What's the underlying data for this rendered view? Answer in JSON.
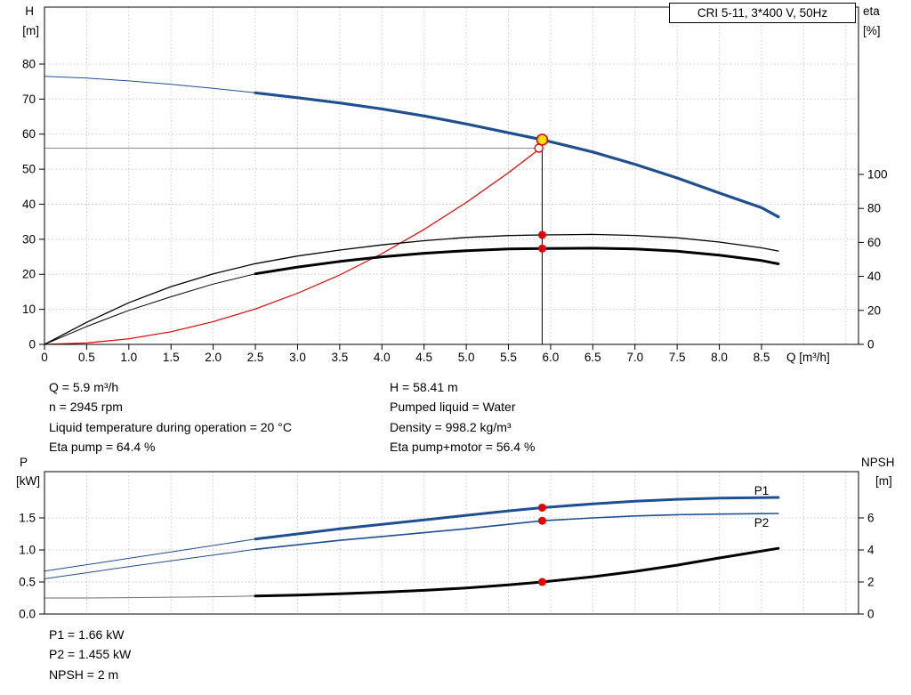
{
  "header": {
    "pump_title": "CRI 5-11, 3*400 V, 50Hz"
  },
  "top_info": {
    "left": [
      "Q = 5.9 m³/h",
      "n = 2945 rpm",
      "Liquid temperature during operation = 20 °C",
      "Eta pump = 64.4 %"
    ],
    "right": [
      "H = 58.41 m",
      "Pumped liquid = Water",
      "Density = 998.2 kg/m³",
      "Eta pump+motor = 56.4 %"
    ]
  },
  "bottom_info": [
    "P1 = 1.66 kW",
    "P2 = 1.455 kW",
    "NPSH = 2 m"
  ],
  "chart_data": [
    {
      "type": "line",
      "title": "CRI 5-11, 3*400 V, 50Hz",
      "x_axis": {
        "label": "Q [m³/h]",
        "range": [
          0,
          9.65
        ],
        "grid_step": 0.5,
        "ticks": [
          0,
          0.5,
          1,
          1.5,
          2,
          2.5,
          3,
          3.5,
          4,
          4.5,
          5,
          5.5,
          6,
          6.5,
          7,
          7.5,
          8,
          8.5
        ],
        "tick_labels": [
          "0",
          "0.5",
          "1.0",
          "1.5",
          "2.0",
          "2.5",
          "3.0",
          "3.5",
          "4.0",
          "4.5",
          "5.0",
          "5.5",
          "6.0",
          "6.5",
          "7.0",
          "7.5",
          "8.0",
          "8.5"
        ]
      },
      "axes": {
        "H": {
          "side": "left",
          "name": "H",
          "unit": "[m]",
          "range": [
            0,
            96.25
          ],
          "grid": true,
          "ticks": [
            0,
            10,
            20,
            30,
            40,
            50,
            60,
            70,
            80
          ]
        },
        "eta": {
          "side": "right",
          "name": "eta",
          "unit": "[%]",
          "range": [
            0,
            198.4
          ],
          "grid": false,
          "ticks": [
            0,
            20,
            40,
            60,
            80,
            100
          ]
        }
      },
      "series": [
        {
          "name": "crosshair-horizontal",
          "axis": "H",
          "color": "#8a8a8a",
          "width": 1,
          "points": [
            [
              0,
              56
            ],
            [
              5.9,
              56
            ]
          ]
        },
        {
          "name": "crosshair-vertical",
          "axis": "H",
          "color": "#000000",
          "width": 1,
          "points": [
            [
              5.9,
              0
            ],
            [
              5.9,
              58.41
            ]
          ]
        },
        {
          "name": "system-curve",
          "axis": "H",
          "color": "#e60000",
          "width": 1.2,
          "points": [
            [
              0,
              0
            ],
            [
              0.5,
              0.4
            ],
            [
              1,
              1.6
            ],
            [
              1.5,
              3.6
            ],
            [
              2,
              6.5
            ],
            [
              2.5,
              10.1
            ],
            [
              3,
              14.6
            ],
            [
              3.5,
              19.8
            ],
            [
              4,
              25.9
            ],
            [
              4.5,
              32.8
            ],
            [
              5,
              40.5
            ],
            [
              5.5,
              49
            ],
            [
              5.88,
              56
            ]
          ]
        },
        {
          "name": "qh-curve-low-flow",
          "axis": "H",
          "color": "#1e4f91",
          "width": 1,
          "points": [
            [
              0,
              76.5
            ],
            [
              0.5,
              76
            ],
            [
              1,
              75.2
            ],
            [
              1.5,
              74.2
            ],
            [
              2,
              73.1
            ],
            [
              2.5,
              71.8
            ]
          ]
        },
        {
          "name": "qh-curve",
          "axis": "H",
          "color": "#1e4f91",
          "width": 3.2,
          "points": [
            [
              2.5,
              71.8
            ],
            [
              3,
              70.4
            ],
            [
              3.5,
              68.9
            ],
            [
              4,
              67.2
            ],
            [
              4.5,
              65.2
            ],
            [
              5,
              62.9
            ],
            [
              5.5,
              60.4
            ],
            [
              5.9,
              58.41
            ],
            [
              6.5,
              54.9
            ],
            [
              7,
              51.4
            ],
            [
              7.5,
              47.5
            ],
            [
              8,
              43.2
            ],
            [
              8.5,
              39
            ],
            [
              8.7,
              36.4
            ]
          ]
        },
        {
          "name": "eta-pump-curve",
          "axis": "eta",
          "color": "#000000",
          "width": 1.3,
          "points": [
            [
              0,
              0
            ],
            [
              0.5,
              13
            ],
            [
              1,
              24.5
            ],
            [
              1.5,
              34
            ],
            [
              2,
              41.5
            ],
            [
              2.5,
              47.5
            ],
            [
              3,
              52
            ],
            [
              3.5,
              55.5
            ],
            [
              4,
              58.5
            ],
            [
              4.5,
              61
            ],
            [
              5,
              62.9
            ],
            [
              5.5,
              64
            ],
            [
              5.9,
              64.4
            ],
            [
              6.5,
              64.7
            ],
            [
              7,
              64.1
            ],
            [
              7.5,
              62.7
            ],
            [
              8,
              60.2
            ],
            [
              8.5,
              56.8
            ],
            [
              8.7,
              54.9
            ]
          ]
        },
        {
          "name": "eta-pump-motor-low-flow",
          "axis": "eta",
          "color": "#000000",
          "width": 1,
          "points": [
            [
              0,
              0
            ],
            [
              0.5,
              10.5
            ],
            [
              1,
              20
            ],
            [
              1.5,
              28
            ],
            [
              2,
              35.5
            ],
            [
              2.5,
              41.5
            ]
          ]
        },
        {
          "name": "eta-pump-motor-curve",
          "axis": "eta",
          "color": "#000000",
          "width": 3,
          "points": [
            [
              2.5,
              41.5
            ],
            [
              3,
              45.5
            ],
            [
              3.5,
              48.8
            ],
            [
              4,
              51.5
            ],
            [
              4.5,
              53.6
            ],
            [
              5,
              55.1
            ],
            [
              5.5,
              56.1
            ],
            [
              5.9,
              56.4
            ],
            [
              6.5,
              56.6
            ],
            [
              7,
              56.1
            ],
            [
              7.5,
              54.8
            ],
            [
              8,
              52.5
            ],
            [
              8.5,
              49.3
            ],
            [
              8.7,
              47.4
            ]
          ]
        }
      ],
      "markers": [
        {
          "name": "requested-duty-point",
          "q": 5.86,
          "axis": "H",
          "value": 56,
          "r": 4.5,
          "fill": "#ffffff",
          "stroke": "#e60000",
          "stroke_width": 1.4
        },
        {
          "name": "eta-pump-point",
          "q": 5.9,
          "axis": "eta",
          "value": 64.4,
          "r": 4.5,
          "fill": "#e60000"
        },
        {
          "name": "eta-pump-motor-point",
          "q": 5.9,
          "axis": "eta",
          "value": 56.4,
          "r": 4.5,
          "fill": "#e60000"
        },
        {
          "name": "operating-point",
          "q": 5.9,
          "axis": "H",
          "value": 58.41,
          "r": 6,
          "fill": "#ffe000",
          "stroke": "#e60000",
          "stroke_width": 1.6
        }
      ],
      "operating_point": {
        "Q": 5.9,
        "H": 58.41,
        "eta_pump": 64.4,
        "eta_pump_motor": 56.4,
        "n_rpm": 2945
      }
    },
    {
      "type": "line",
      "x_axis": {
        "label": "",
        "range": [
          0,
          9.65
        ],
        "grid_step": 0.5,
        "ticks": []
      },
      "axes": {
        "P": {
          "side": "left",
          "name": "P",
          "unit": "[kW]",
          "range": [
            0,
            2.2222
          ],
          "grid": true,
          "ticks": [
            0,
            0.5,
            1,
            1.5
          ],
          "tick_labels": [
            "0.0",
            "0.5",
            "1.0",
            "1.5"
          ]
        },
        "NPSH": {
          "side": "right",
          "name": "NPSH",
          "unit": "[m]",
          "range": [
            0,
            8.889
          ],
          "grid": false,
          "ticks": [
            0,
            2,
            4,
            6
          ],
          "tick_labels": [
            "0",
            "2",
            "4",
            "6"
          ]
        }
      },
      "series": [
        {
          "name": "p1-low-flow",
          "axis": "P",
          "color": "#1e4f91",
          "width": 1,
          "points": [
            [
              0,
              0.67
            ],
            [
              0.5,
              0.77
            ],
            [
              1,
              0.87
            ],
            [
              1.5,
              0.97
            ],
            [
              2,
              1.07
            ],
            [
              2.5,
              1.17
            ]
          ]
        },
        {
          "name": "p1-curve",
          "axis": "P",
          "color": "#1e4f91",
          "width": 3,
          "points": [
            [
              2.5,
              1.17
            ],
            [
              3,
              1.25
            ],
            [
              3.5,
              1.33
            ],
            [
              4,
              1.4
            ],
            [
              4.5,
              1.47
            ],
            [
              5,
              1.54
            ],
            [
              5.5,
              1.61
            ],
            [
              5.9,
              1.66
            ],
            [
              6.5,
              1.72
            ],
            [
              7,
              1.76
            ],
            [
              7.5,
              1.79
            ],
            [
              8,
              1.81
            ],
            [
              8.7,
              1.82
            ]
          ]
        },
        {
          "name": "p2-low-flow",
          "axis": "P",
          "color": "#1e4f91",
          "width": 1,
          "points": [
            [
              0,
              0.55
            ],
            [
              0.5,
              0.645
            ],
            [
              1,
              0.74
            ],
            [
              1.5,
              0.83
            ],
            [
              2,
              0.92
            ],
            [
              2.5,
              1.01
            ]
          ]
        },
        {
          "name": "p2-curve",
          "axis": "P",
          "color": "#1e4f91",
          "width": 1.6,
          "points": [
            [
              2.5,
              1.01
            ],
            [
              3,
              1.08
            ],
            [
              3.5,
              1.15
            ],
            [
              4,
              1.21
            ],
            [
              4.5,
              1.27
            ],
            [
              5,
              1.33
            ],
            [
              5.5,
              1.4
            ],
            [
              5.9,
              1.455
            ],
            [
              6.5,
              1.5
            ],
            [
              7,
              1.53
            ],
            [
              7.5,
              1.55
            ],
            [
              8,
              1.56
            ],
            [
              8.7,
              1.57
            ]
          ]
        },
        {
          "name": "npsh-low-flow",
          "axis": "NPSH",
          "color": "#6e6e6e",
          "width": 1,
          "points": [
            [
              0,
              1
            ],
            [
              0.5,
              1
            ],
            [
              1,
              1.02
            ],
            [
              1.5,
              1.05
            ],
            [
              2,
              1.08
            ],
            [
              2.5,
              1.12
            ]
          ]
        },
        {
          "name": "npsh-curve",
          "axis": "NPSH",
          "color": "#000000",
          "width": 3,
          "points": [
            [
              2.5,
              1.12
            ],
            [
              3,
              1.18
            ],
            [
              3.5,
              1.26
            ],
            [
              4,
              1.36
            ],
            [
              4.5,
              1.48
            ],
            [
              5,
              1.63
            ],
            [
              5.5,
              1.82
            ],
            [
              5.9,
              2
            ],
            [
              6.5,
              2.33
            ],
            [
              7,
              2.66
            ],
            [
              7.5,
              3.05
            ],
            [
              8,
              3.5
            ],
            [
              8.7,
              4.1
            ]
          ]
        }
      ],
      "markers": [
        {
          "name": "p1-point",
          "q": 5.9,
          "axis": "P",
          "value": 1.66,
          "r": 4.5,
          "fill": "#e60000"
        },
        {
          "name": "p2-point",
          "q": 5.9,
          "axis": "P",
          "value": 1.455,
          "r": 4.5,
          "fill": "#e60000"
        },
        {
          "name": "npsh-point",
          "q": 5.9,
          "axis": "NPSH",
          "value": 2,
          "r": 4.5,
          "fill": "#e60000"
        }
      ],
      "annotations": [
        {
          "text": "P1",
          "q": 8.5,
          "axis": "P",
          "value": 1.86,
          "color": "#1e4f91"
        },
        {
          "text": "P2",
          "q": 8.5,
          "axis": "P",
          "value": 1.36,
          "color": "#1e4f91"
        }
      ],
      "operating_point": {
        "P1_kW": 1.66,
        "P2_kW": 1.455,
        "NPSH_m": 2
      }
    }
  ]
}
